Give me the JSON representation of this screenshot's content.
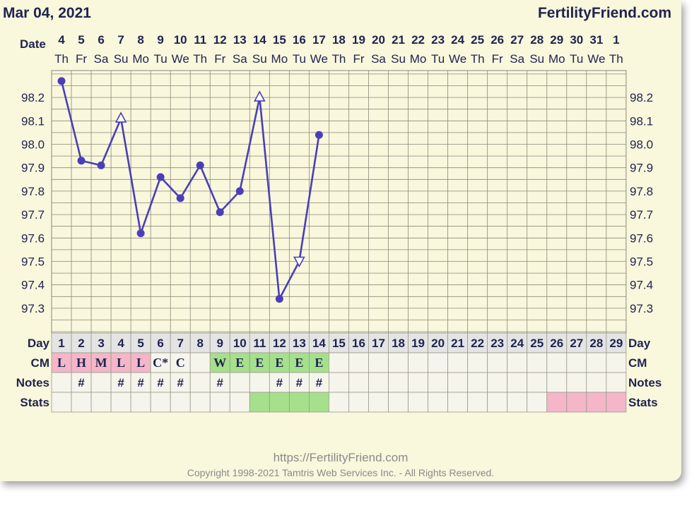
{
  "header": {
    "date": "Mar 04, 2021",
    "brand": "FertilityFriend.com"
  },
  "footer": {
    "url": "https://FertilityFriend.com",
    "copyright": "Copyright 1998-2021 Tamtris Web Services Inc. - All Rights Reserved."
  },
  "labels": {
    "date": "Date",
    "day": "Day",
    "cm": "CM",
    "notes": "Notes",
    "stats": "Stats"
  },
  "colors": {
    "line": "#4a3fb8",
    "cm_pink": "#f4b6c8",
    "cm_green": "#a6e08c",
    "stats_green": "#a6e08c",
    "stats_pink": "#f4b6c8",
    "grid": "#8a8a7a",
    "text": "#1f2350"
  },
  "chart_data": {
    "type": "line",
    "title": "",
    "xlabel": "Date",
    "ylabel": "",
    "ylim": [
      97.2,
      98.3
    ],
    "yticks": [
      "98.2",
      "98.1",
      "98.0",
      "97.9",
      "97.8",
      "97.7",
      "97.6",
      "97.5",
      "97.4",
      "97.3"
    ],
    "dates": [
      "4",
      "5",
      "6",
      "7",
      "8",
      "9",
      "10",
      "11",
      "12",
      "13",
      "14",
      "15",
      "16",
      "17",
      "18",
      "19",
      "20",
      "21",
      "22",
      "23",
      "24",
      "25",
      "26",
      "27",
      "28",
      "29",
      "30",
      "31",
      "1"
    ],
    "weekdays": [
      "Th",
      "Fr",
      "Sa",
      "Su",
      "Mo",
      "Tu",
      "We",
      "Th",
      "Fr",
      "Sa",
      "Su",
      "Mo",
      "Tu",
      "We",
      "Th",
      "Fr",
      "Sa",
      "Su",
      "Mo",
      "Tu",
      "We",
      "Th",
      "Fr",
      "Sa",
      "Su",
      "Mo",
      "Tu",
      "We",
      "Th"
    ],
    "cycle_days": [
      "1",
      "2",
      "3",
      "4",
      "5",
      "6",
      "7",
      "8",
      "9",
      "10",
      "11",
      "12",
      "13",
      "14",
      "15",
      "16",
      "17",
      "18",
      "19",
      "20",
      "21",
      "22",
      "23",
      "24",
      "25",
      "26",
      "27",
      "28",
      "29"
    ],
    "series": [
      {
        "temps": [
          98.27,
          97.93,
          97.91,
          98.11,
          97.62,
          97.86,
          97.77,
          97.91,
          97.71,
          97.8,
          98.2,
          97.34,
          97.5,
          98.04
        ],
        "markers": [
          "dot",
          "dot",
          "dot",
          "tri-up",
          "dot",
          "dot",
          "dot",
          "dot",
          "dot",
          "dot",
          "tri-up",
          "dot",
          "tri-down",
          "dot"
        ]
      }
    ],
    "cm": [
      "L",
      "H",
      "M",
      "L",
      "L",
      "C*",
      "C",
      "",
      "W",
      "E",
      "E",
      "E",
      "E",
      "E",
      "",
      "",
      "",
      "",
      "",
      "",
      "",
      "",
      "",
      "",
      "",
      "",
      "",
      "",
      ""
    ],
    "cm_colors": [
      "pink",
      "pink",
      "pink",
      "pink",
      "pink",
      "none",
      "none",
      "none",
      "green",
      "green",
      "green",
      "green",
      "green",
      "green",
      "",
      "",
      "",
      "",
      "",
      "",
      "",
      "",
      "",
      "",
      "",
      "",
      "",
      "",
      ""
    ],
    "notes": [
      "",
      "#",
      "",
      "#",
      "#",
      "#",
      "#",
      "",
      "#",
      "",
      "",
      "#",
      "#",
      "#",
      "",
      "",
      "",
      "",
      "",
      "",
      "",
      "",
      "",
      "",
      "",
      "",
      "",
      "",
      ""
    ],
    "stats": [
      "",
      "",
      "",
      "",
      "",
      "",
      "",
      "",
      "",
      "",
      "green",
      "green",
      "green",
      "green",
      "",
      "",
      "",
      "",
      "",
      "",
      "",
      "",
      "",
      "",
      "",
      "pink",
      "pink",
      "pink",
      "pink"
    ]
  }
}
